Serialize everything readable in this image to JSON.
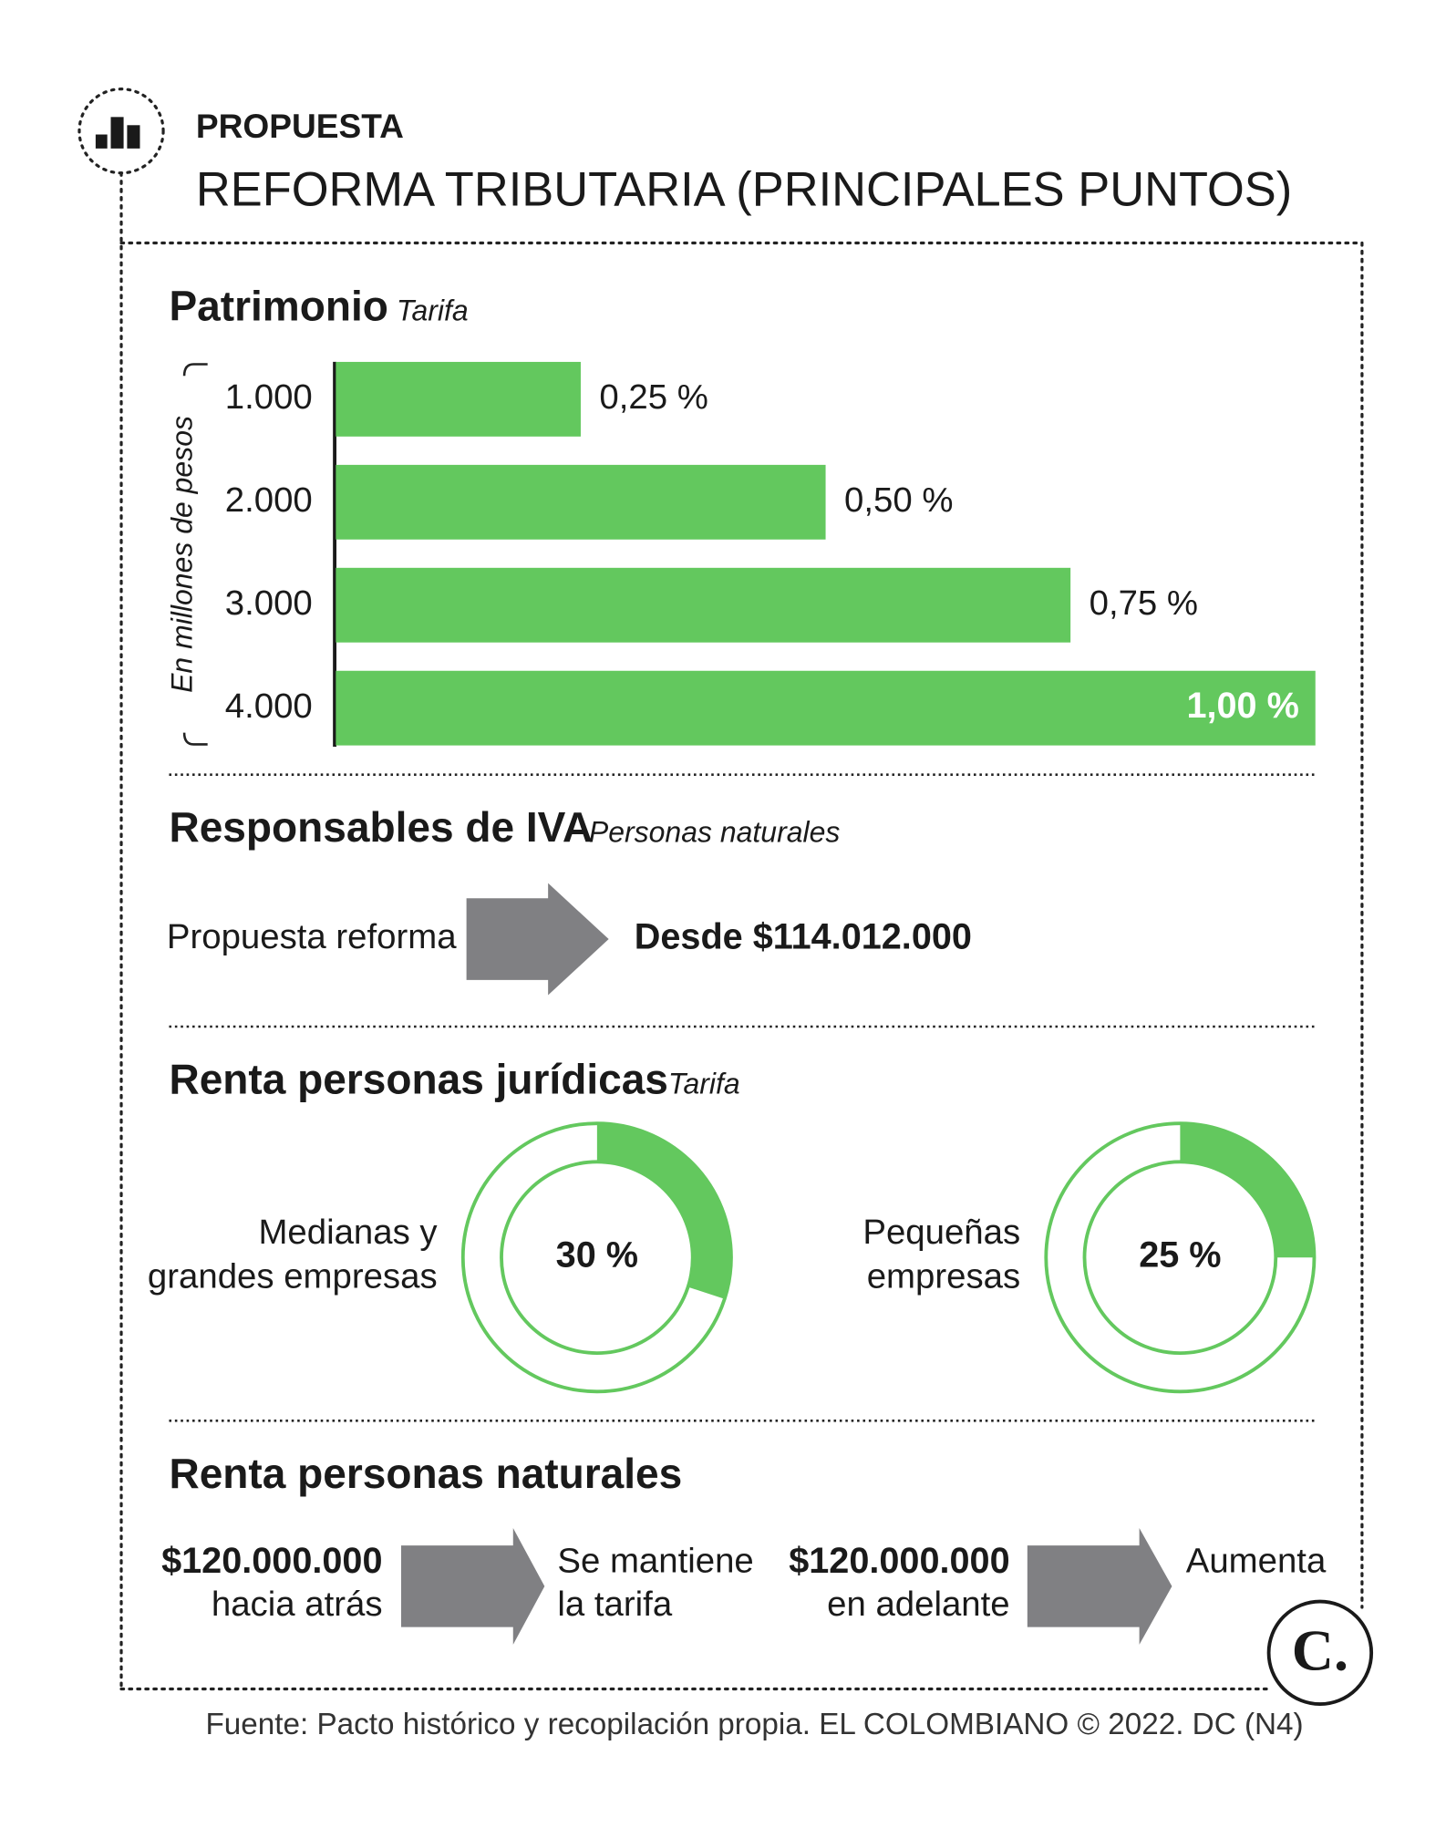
{
  "header": {
    "kicker": "PROPUESTA",
    "title": "REFORMA TRIBUTARIA (PRINCIPALES PUNTOS)"
  },
  "chart_data": [
    {
      "type": "bar",
      "orientation": "horizontal",
      "title": "Patrimonio",
      "subtitle": "Tarifa",
      "y_label": "En millones de pesos",
      "categories": [
        "1.000",
        "2.000",
        "3.000",
        "4.000"
      ],
      "values": [
        0.25,
        0.5,
        0.75,
        1.0
      ],
      "value_labels": [
        "0,25 %",
        "0,50 %",
        "0,75 %",
        "1,00 %"
      ],
      "color": "#63c85e",
      "xlim": [
        0,
        1
      ]
    },
    {
      "type": "donut",
      "title": "Renta personas jurídicas",
      "subtitle": "Tarifa",
      "categories": [
        [
          "Medianas y",
          "grandes empresas"
        ],
        [
          "Pequeñas",
          "empresas"
        ]
      ],
      "values": [
        30,
        25
      ],
      "value_labels": [
        "30 %",
        "25 %"
      ],
      "color": "#63c85e",
      "ylim": [
        0,
        100
      ]
    }
  ],
  "iva": {
    "title": "Responsables de IVA",
    "subtitle": "Personas naturales",
    "from": "Propuesta reforma",
    "to": "Desde $114.012.000"
  },
  "renta_naturales": {
    "title": "Renta personas naturales",
    "items": [
      {
        "amount": "$120.000.000",
        "detail": "hacia atrás",
        "result": [
          "Se mantiene",
          "la tarifa"
        ]
      },
      {
        "amount": "$120.000.000",
        "detail": "en adelante",
        "result": [
          "Aumenta"
        ]
      }
    ]
  },
  "logo": "C.",
  "source": "Fuente: Pacto histórico y recopilación propia. EL COLOMBIANO © 2022. DC (N4)"
}
